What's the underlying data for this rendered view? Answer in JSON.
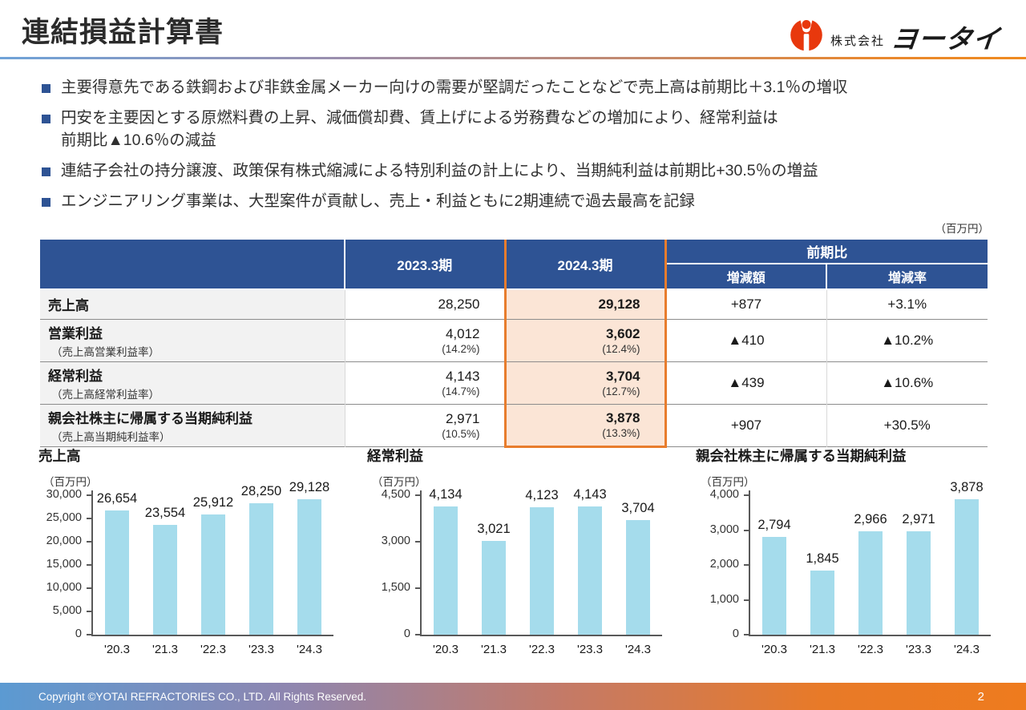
{
  "header": {
    "title": "連結損益計算書",
    "logo": {
      "prefix": "株式会社",
      "name": "ヨータイ",
      "mark_color": "#e8380d"
    }
  },
  "bullets": [
    {
      "text": "主要得意先である鉄鋼および非鉄金属メーカー向けの需要が堅調だったことなどで売上高は前期比＋3.1％の増収"
    },
    {
      "text": "円安を主要因とする原燃料費の上昇、減価償却費、賃上げによる労務費などの増加により、経常利益は\n前期比▲10.6％の減益"
    },
    {
      "text": "連結子会社の持分譲渡、政策保有株式縮減による特別利益の計上により、当期純利益は前期比+30.5％の増益"
    },
    {
      "text": "エンジニアリング事業は、大型案件が貢献し、売上・利益ともに2期連続で過去最高を記録"
    }
  ],
  "table": {
    "unit_note": "（百万円）",
    "col_headers": {
      "fy2023": "2023.3期",
      "fy2024": "2024.3期",
      "yoy": "前期比",
      "yoy_amount": "増減額",
      "yoy_rate": "増減率"
    },
    "rows": [
      {
        "label": "売上高",
        "sub_label": "",
        "fy2023": "28,250",
        "fy2023_sub": "",
        "fy2024": "29,128",
        "fy2024_sub": "",
        "amount": "+877",
        "rate": "+3.1%"
      },
      {
        "label": "営業利益",
        "sub_label": "（売上高営業利益率）",
        "fy2023": "4,012",
        "fy2023_sub": "(14.2%)",
        "fy2024": "3,602",
        "fy2024_sub": "(12.4%)",
        "amount": "▲410",
        "rate": "▲10.2%"
      },
      {
        "label": "経常利益",
        "sub_label": "（売上高経常利益率）",
        "fy2023": "4,143",
        "fy2023_sub": "(14.7%)",
        "fy2024": "3,704",
        "fy2024_sub": "(12.7%)",
        "amount": "▲439",
        "rate": "▲10.6%"
      },
      {
        "label": "親会社株主に帰属する当期純利益",
        "sub_label": "（売上高当期純利益率）",
        "fy2023": "2,971",
        "fy2023_sub": "(10.5%)",
        "fy2024": "3,878",
        "fy2024_sub": "(13.3%)",
        "amount": "+907",
        "rate": "+30.5%"
      }
    ]
  },
  "chart_data": [
    {
      "type": "bar",
      "title": "売上高",
      "unit": "（百万円）",
      "categories": [
        "'20.3",
        "'21.3",
        "'22.3",
        "'23.3",
        "'24.3"
      ],
      "values": [
        26654,
        23554,
        25912,
        28250,
        29128
      ],
      "labels": [
        "26,654",
        "23,554",
        "25,912",
        "28,250",
        "29,128"
      ],
      "ylim": [
        0,
        30000
      ],
      "yticks": [
        0,
        5000,
        10000,
        15000,
        20000,
        25000,
        30000
      ],
      "ytick_labels": [
        "0",
        "5,000",
        "10,000",
        "15,000",
        "20,000",
        "25,000",
        "30,000"
      ],
      "bar_color": "#a5dcec",
      "grid": false,
      "legend": "none"
    },
    {
      "type": "bar",
      "title": "経常利益",
      "unit": "（百万円）",
      "categories": [
        "'20.3",
        "'21.3",
        "'22.3",
        "'23.3",
        "'24.3"
      ],
      "values": [
        4134,
        3021,
        4123,
        4143,
        3704
      ],
      "labels": [
        "4,134",
        "3,021",
        "4,123",
        "4,143",
        "3,704"
      ],
      "ylim": [
        0,
        4500
      ],
      "yticks": [
        0,
        1500,
        3000,
        4500
      ],
      "ytick_labels": [
        "0",
        "1,500",
        "3,000",
        "4,500"
      ],
      "bar_color": "#a5dcec",
      "grid": false,
      "legend": "none"
    },
    {
      "type": "bar",
      "title": "親会社株主に帰属する当期純利益",
      "unit": "（百万円）",
      "categories": [
        "'20.3",
        "'21.3",
        "'22.3",
        "'23.3",
        "'24.3"
      ],
      "values": [
        2794,
        1845,
        2966,
        2971,
        3878
      ],
      "labels": [
        "2,794",
        "1,845",
        "2,966",
        "2,971",
        "3,878"
      ],
      "ylim": [
        0,
        4000
      ],
      "yticks": [
        0,
        1000,
        2000,
        3000,
        4000
      ],
      "ytick_labels": [
        "0",
        "1,000",
        "2,000",
        "3,000",
        "4,000"
      ],
      "bar_color": "#a5dcec",
      "grid": false,
      "legend": "none"
    }
  ],
  "footer": {
    "copyright": "Copyright ©YOTAI REFRACTORIES CO., LTD. All Rights Reserved.",
    "page_number": "2"
  },
  "colors": {
    "header_blue": "#2e5394",
    "accent_orange": "#e87d2d",
    "highlight_bg": "#fbe5d6",
    "bar_blue": "#a5dcec"
  }
}
